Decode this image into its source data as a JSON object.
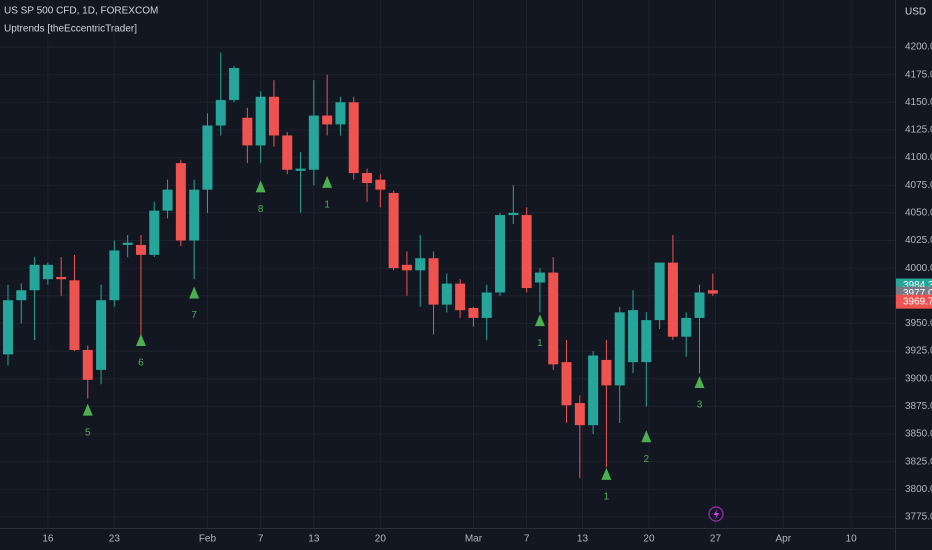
{
  "chart_data": {
    "type": "candlestick",
    "title": "US SP 500 CFD, 1D, FOREXCOM",
    "subtitle": "Uptrends [theEccentricTrader]",
    "currency": "USD",
    "up_color": "#26a69a",
    "down_color": "#ef5350",
    "marker_color": "#4caf50",
    "grid": true,
    "xlim": [
      -0.6,
      66.7
    ],
    "ylim": [
      3765,
      4242.5
    ],
    "x": [
      0,
      1,
      2,
      3,
      4,
      5,
      6,
      7,
      8,
      9,
      10,
      11,
      12,
      13,
      14,
      15,
      16,
      17,
      18,
      19,
      20,
      21,
      22,
      23,
      24,
      25,
      26,
      27,
      28,
      29,
      30,
      31,
      32,
      33,
      34,
      35,
      36,
      37,
      38,
      39,
      40,
      41,
      42,
      43,
      44,
      45,
      46,
      47,
      48,
      49,
      50,
      51,
      52,
      53
    ],
    "open": [
      3922,
      3971,
      3980,
      3990,
      3992,
      3989,
      3926,
      3908,
      3971,
      4021,
      4021,
      4012,
      4052,
      4095,
      4025,
      4071,
      4129,
      4152,
      4136,
      4111,
      4155,
      4120,
      4088,
      4089,
      4138,
      4130,
      4150,
      4086,
      4080,
      4068,
      4003,
      3998,
      4009,
      3967,
      3986,
      3964,
      3955,
      3978,
      4048,
      4048,
      3987,
      3996,
      3915,
      3878,
      3858,
      3917,
      3894,
      3915,
      3915,
      3953,
      4005,
      3938,
      3955,
      3980
    ],
    "high": [
      3985,
      3986,
      4010,
      4005,
      4010,
      4012,
      3930,
      3985,
      4025,
      4030,
      4030,
      4060,
      4080,
      4098,
      4080,
      4140,
      4195,
      4183,
      4145,
      4160,
      4170,
      4123,
      4105,
      4170,
      4175,
      4155,
      4155,
      4090,
      4085,
      4070,
      4015,
      4030,
      4015,
      3995,
      3990,
      3965,
      3985,
      4050,
      4075,
      4055,
      4000,
      4010,
      3935,
      3885,
      3925,
      3935,
      3965,
      3980,
      3960,
      4005,
      4030,
      3960,
      3985,
      3995
    ],
    "low": [
      3912,
      3950,
      3935,
      3985,
      3975,
      3925,
      3882,
      3895,
      3965,
      4010,
      3935,
      4010,
      4045,
      4020,
      3990,
      4050,
      4120,
      4150,
      4095,
      4095,
      4110,
      4085,
      4050,
      4075,
      4120,
      4120,
      4080,
      4060,
      4055,
      3998,
      3975,
      3965,
      3940,
      3960,
      3955,
      3947,
      3935,
      3975,
      4040,
      3978,
      3960,
      3908,
      3860,
      3810,
      3850,
      3820,
      3860,
      3905,
      3875,
      3945,
      3935,
      3920,
      3905,
      3975
    ],
    "close": [
      3971,
      3980,
      4003,
      4003,
      3990,
      3926,
      3899,
      3971,
      4016,
      4023,
      4012,
      4052,
      4071,
      4025,
      4071,
      4129,
      4152,
      4181,
      4111,
      4155,
      4120,
      4089,
      4090,
      4138,
      4130,
      4150,
      4086,
      4077,
      4071,
      4000,
      3998,
      4009,
      3967,
      3986,
      3962,
      3955,
      3978,
      4048,
      4050,
      3982,
      3996,
      3913,
      3876,
      3858,
      3921,
      3894,
      3960,
      3962,
      3953,
      4005,
      3938,
      3955,
      3978,
      3977
    ],
    "markers": {
      "x": [
        6,
        10,
        14,
        19,
        24,
        40,
        45,
        48,
        52
      ],
      "y": [
        3872,
        3935,
        3978,
        4074,
        4078,
        3953,
        3814,
        3848,
        3897
      ],
      "labels": [
        "5",
        "6",
        "7",
        "8",
        "1",
        "1",
        "1",
        "2",
        "3"
      ]
    },
    "yticks": [
      {
        "value": 3775,
        "label": "3775.0"
      },
      {
        "value": 3800,
        "label": "3800.0"
      },
      {
        "value": 3825,
        "label": "3825.0"
      },
      {
        "value": 3850,
        "label": "3850.0"
      },
      {
        "value": 3875,
        "label": "3875.0"
      },
      {
        "value": 3900,
        "label": "3900.0"
      },
      {
        "value": 3925,
        "label": "3925.0"
      },
      {
        "value": 3950,
        "label": "3950.0"
      },
      {
        "value": 3975,
        "label": "3975.0"
      },
      {
        "value": 4000,
        "label": "4000.0"
      },
      {
        "value": 4025,
        "label": "4025.0"
      },
      {
        "value": 4050,
        "label": "4050.0"
      },
      {
        "value": 4075,
        "label": "4075.0"
      },
      {
        "value": 4100,
        "label": "4100.0"
      },
      {
        "value": 4125,
        "label": "4125.0"
      },
      {
        "value": 4150,
        "label": "4150.0"
      },
      {
        "value": 4175,
        "label": "4175.0"
      },
      {
        "value": 4200,
        "label": "4200.0"
      }
    ],
    "xticks": [
      {
        "value": 3,
        "label": "16"
      },
      {
        "value": 8,
        "label": "23"
      },
      {
        "value": 15,
        "label": "Feb"
      },
      {
        "value": 19,
        "label": "7"
      },
      {
        "value": 23,
        "label": "13"
      },
      {
        "value": 28,
        "label": "20"
      },
      {
        "value": 35,
        "label": "Mar"
      },
      {
        "value": 39,
        "label": "7"
      },
      {
        "value": 43.2,
        "label": "13"
      },
      {
        "value": 48.2,
        "label": "20"
      },
      {
        "value": 53.2,
        "label": "27"
      },
      {
        "value": 58.3,
        "label": "Apr"
      },
      {
        "value": 63.4,
        "label": "10"
      }
    ],
    "price_labels": [
      {
        "value": 3984.3,
        "color": "#26a69a"
      },
      {
        "value": {
          "value": 3977,
          "label": "3977.0"
        },
        "color": "#787b86"
      },
      {
        "value": 3969.7,
        "color": "#ef5350"
      }
    ]
  }
}
